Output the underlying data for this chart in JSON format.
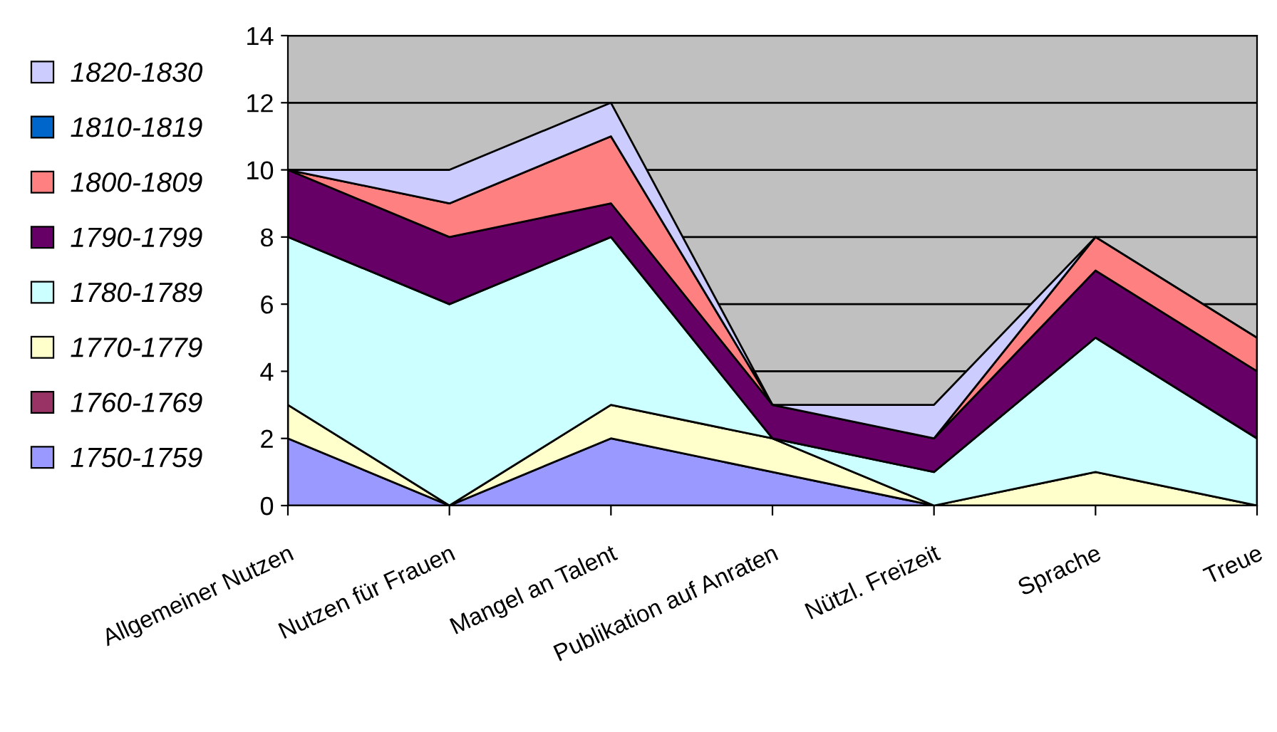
{
  "chart_data": {
    "type": "area",
    "stacked": true,
    "categories": [
      "Allgemeiner Nutzen",
      "Nutzen für Frauen",
      "Mangel an Talent",
      "Publikation auf Anraten",
      "Nützl. Freizeit",
      "Sprache",
      "Treue"
    ],
    "series": [
      {
        "name": "1750-1759",
        "color": "#9999ff",
        "values": [
          2,
          0,
          2,
          1,
          0,
          0,
          0
        ]
      },
      {
        "name": "1760-1769",
        "color": "#993366",
        "values": [
          null,
          null,
          null,
          null,
          null,
          null,
          null
        ]
      },
      {
        "name": "1770-1779",
        "color": "#ffffcc",
        "values": [
          1,
          0,
          1,
          1,
          0,
          1,
          0
        ]
      },
      {
        "name": "1780-1789",
        "color": "#ccffff",
        "values": [
          5,
          6,
          5,
          0,
          1,
          4,
          2
        ]
      },
      {
        "name": "1790-1799",
        "color": "#660066",
        "values": [
          2,
          2,
          1,
          1,
          1,
          2,
          2
        ]
      },
      {
        "name": "1800-1809",
        "color": "#ff8080",
        "values": [
          0,
          1,
          2,
          0,
          0,
          1,
          1
        ]
      },
      {
        "name": "1810-1819",
        "color": "#0066cc",
        "values": [
          null,
          null,
          null,
          null,
          null,
          null,
          null
        ]
      },
      {
        "name": "1820-1830",
        "color": "#ccccff",
        "values": [
          0,
          1,
          1,
          0,
          1,
          0,
          0
        ]
      }
    ],
    "ylim": [
      0,
      14
    ],
    "yticks": [
      0,
      2,
      4,
      6,
      8,
      10,
      12,
      14
    ],
    "grid": "y",
    "legend": "left"
  }
}
